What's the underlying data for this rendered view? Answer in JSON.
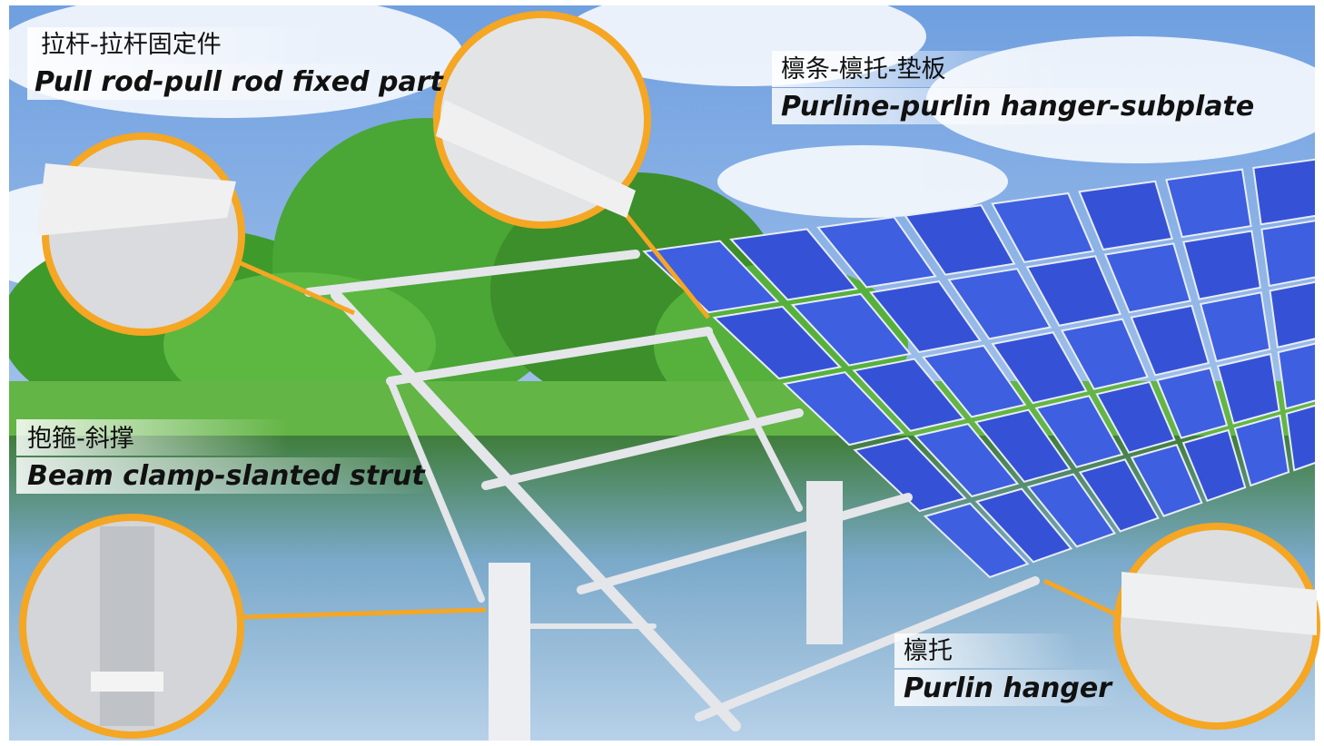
{
  "labels": [
    {
      "zh": "拉杆-拉杆固定件",
      "en": "Pull rod-pull rod fixed part"
    },
    {
      "zh": "檩条-檩托-垫板",
      "en": "Purline-purlin hanger-subplate"
    },
    {
      "zh": "抱箍-斜撑",
      "en": "Beam clamp-slanted strut"
    },
    {
      "zh": "檩托",
      "en": "Purlin hanger"
    }
  ]
}
